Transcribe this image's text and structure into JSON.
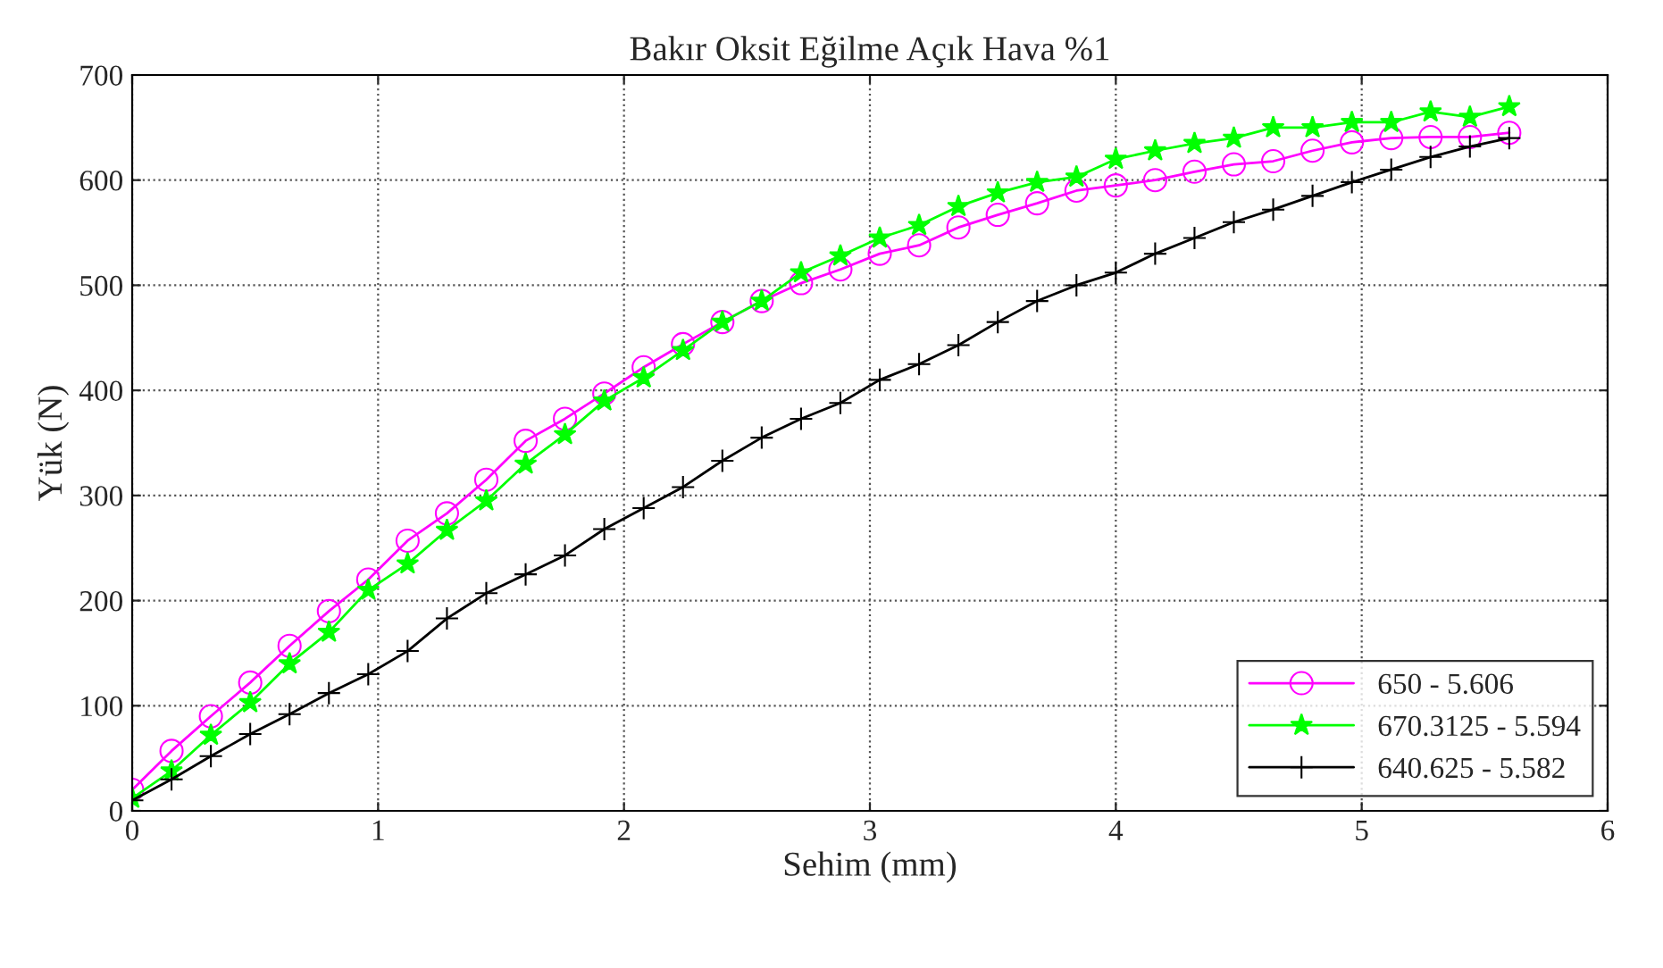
{
  "chart_data": {
    "type": "line",
    "title": "Bakır Oksit Eğilme Açık Hava %1",
    "xlabel": "Sehim (mm)",
    "ylabel": "Yük (N)",
    "x": [
      0,
      0.16,
      0.32,
      0.48,
      0.64,
      0.8,
      0.96,
      1.12,
      1.28,
      1.44,
      1.6,
      1.76,
      1.92,
      2.08,
      2.24,
      2.4,
      2.56,
      2.72,
      2.88,
      3.04,
      3.2,
      3.36,
      3.52,
      3.68,
      3.84,
      4.0,
      4.16,
      4.32,
      4.48,
      4.64,
      4.8,
      4.96,
      5.12,
      5.28,
      5.44,
      5.6
    ],
    "series": [
      {
        "name": "650 - 5.606",
        "color": "#ff00ff",
        "marker": "circle",
        "values": [
          20,
          57,
          90,
          122,
          157,
          190,
          220,
          257,
          283,
          315,
          352,
          373,
          397,
          422,
          444,
          465,
          485,
          502,
          515,
          530,
          538,
          555,
          567,
          578,
          590,
          595,
          600,
          608,
          615,
          618,
          628,
          636,
          640,
          641,
          641,
          645
        ]
      },
      {
        "name": "670.3125 - 5.594",
        "color": "#00ff00",
        "marker": "star",
        "values": [
          12,
          38,
          72,
          103,
          140,
          170,
          210,
          235,
          267,
          295,
          330,
          358,
          390,
          412,
          438,
          465,
          485,
          512,
          528,
          545,
          557,
          575,
          588,
          598,
          603,
          620,
          628,
          635,
          640,
          650,
          650,
          655,
          655,
          665,
          660,
          670
        ]
      },
      {
        "name": "640.625 - 5.582",
        "color": "#000000",
        "marker": "cross",
        "values": [
          10,
          30,
          52,
          73,
          92,
          112,
          130,
          152,
          183,
          207,
          225,
          243,
          268,
          288,
          308,
          333,
          355,
          373,
          388,
          410,
          425,
          443,
          465,
          485,
          500,
          512,
          530,
          545,
          560,
          572,
          585,
          598,
          610,
          622,
          632,
          640
        ]
      }
    ],
    "xlim": [
      0,
      6
    ],
    "ylim": [
      0,
      700
    ],
    "xticks": [
      0,
      1,
      2,
      3,
      4,
      5,
      6
    ],
    "yticks": [
      0,
      100,
      200,
      300,
      400,
      500,
      600,
      700
    ],
    "grid": true,
    "legend": "bottom right"
  }
}
